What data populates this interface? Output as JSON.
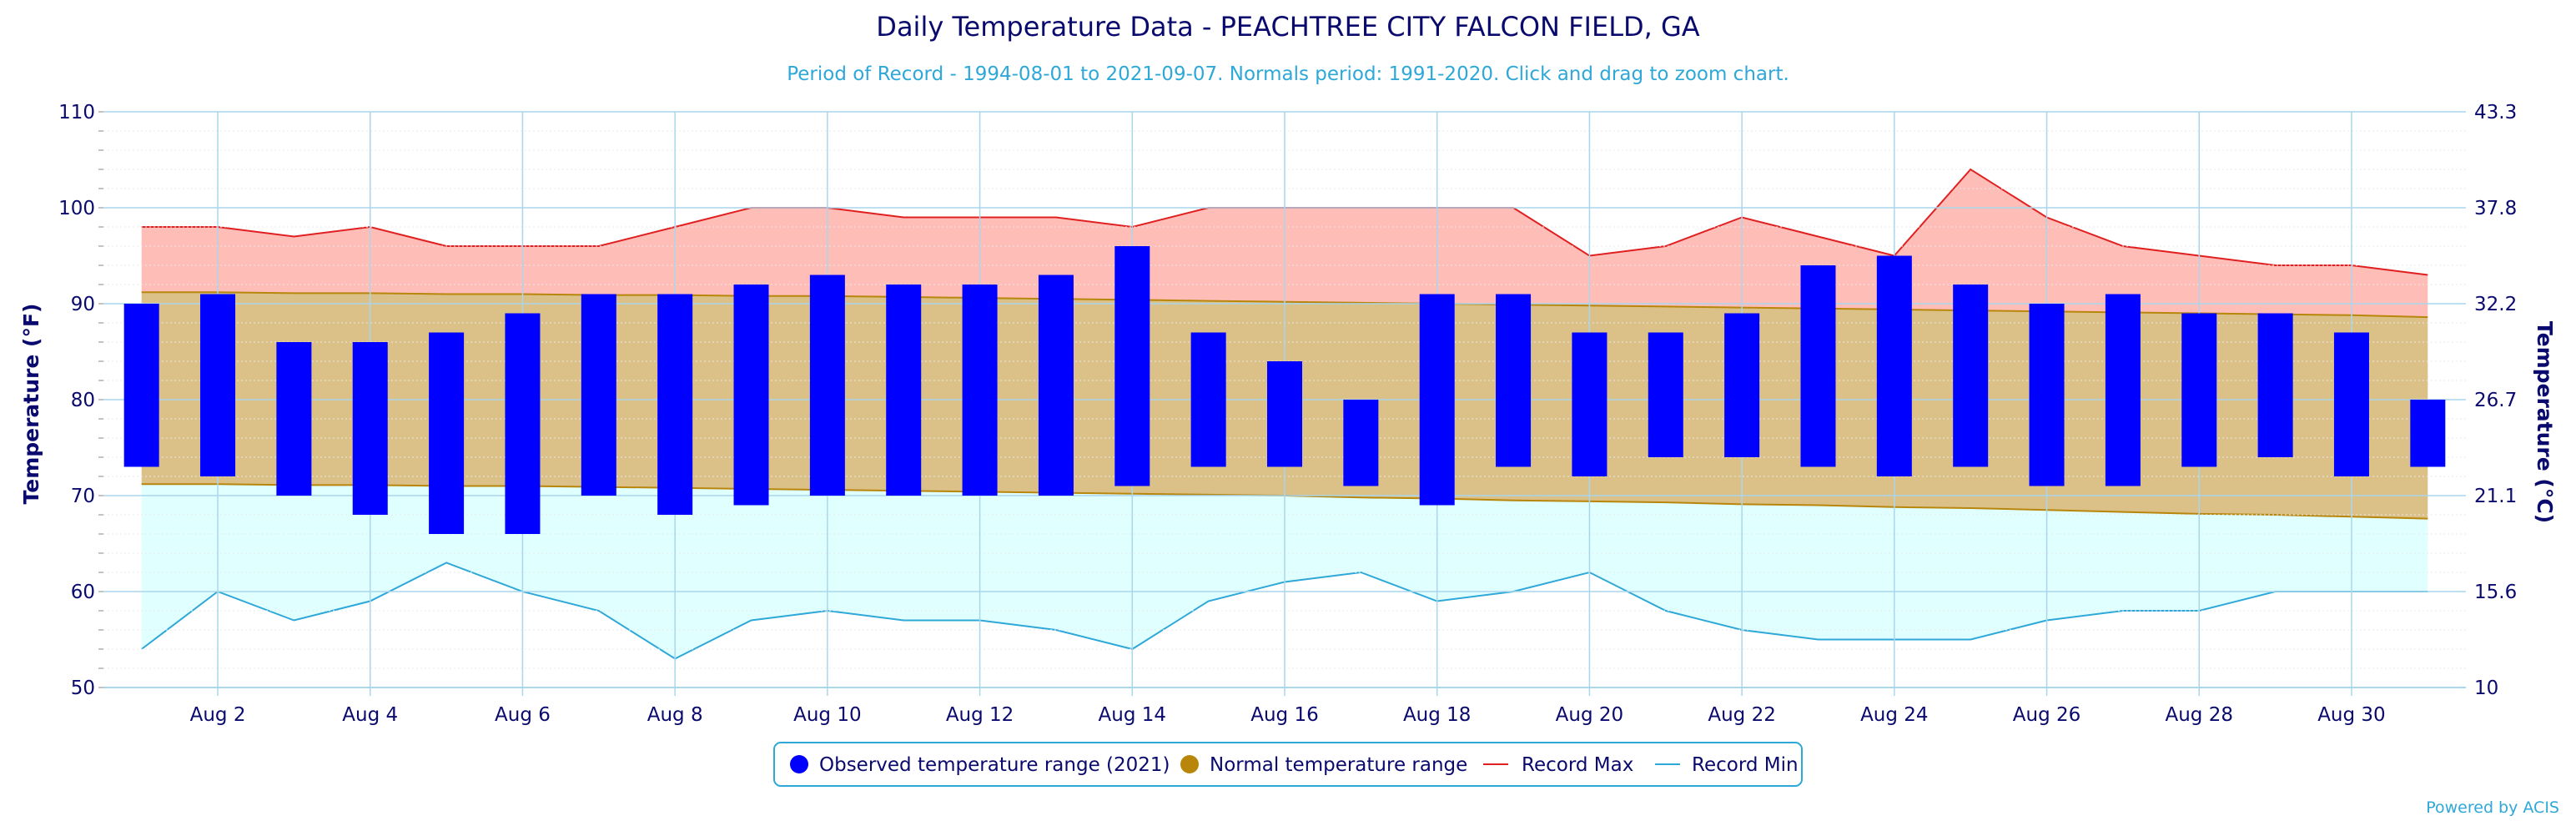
{
  "chart_data": {
    "type": "bar",
    "title": "Daily Temperature Data - PEACHTREE CITY FALCON FIELD, GA",
    "subtitle": "Period of Record - 1994-08-01 to 2021-09-07. Normals period: 1991-2020. Click and drag to zoom chart.",
    "ylabel": "Temperature (°F)",
    "ylabel_right": "Temperature (°C)",
    "ylim": [
      50,
      110
    ],
    "x": [
      1,
      2,
      3,
      4,
      5,
      6,
      7,
      8,
      9,
      10,
      11,
      12,
      13,
      14,
      15,
      16,
      17,
      18,
      19,
      20,
      21,
      22,
      23,
      24,
      25,
      26,
      27,
      28,
      29,
      30,
      31
    ],
    "x_tick_labels": [
      "Aug 2",
      "Aug 4",
      "Aug 6",
      "Aug 8",
      "Aug 10",
      "Aug 12",
      "Aug 14",
      "Aug 16",
      "Aug 18",
      "Aug 20",
      "Aug 22",
      "Aug 24",
      "Aug 26",
      "Aug 28",
      "Aug 30"
    ],
    "x_tick_values": [
      2,
      4,
      6,
      8,
      10,
      12,
      14,
      16,
      18,
      20,
      22,
      24,
      26,
      28,
      30
    ],
    "y_tick_labels": [
      "50",
      "60",
      "70",
      "80",
      "90",
      "100",
      "110"
    ],
    "y_right_tick_labels": [
      "10",
      "15.6",
      "21.1",
      "26.7",
      "32.2",
      "37.8",
      "43.3"
    ],
    "series": [
      {
        "name": "Observed temperature range (2021)",
        "color": "#0000ff",
        "low": [
          73,
          72,
          70,
          68,
          66,
          66,
          70,
          68,
          69,
          70,
          70,
          70,
          70,
          71,
          73,
          73,
          71,
          69,
          73,
          72,
          74,
          74,
          73,
          72,
          73,
          71,
          71,
          73,
          74,
          72,
          73
        ],
        "high": [
          90,
          91,
          86,
          86,
          87,
          89,
          91,
          91,
          92,
          93,
          92,
          92,
          93,
          96,
          87,
          84,
          80,
          91,
          91,
          87,
          87,
          89,
          94,
          95,
          92,
          90,
          91,
          89,
          89,
          87,
          80
        ]
      },
      {
        "name": "Normal temperature range",
        "color": "#b8860b",
        "low": [
          71.2,
          71.2,
          71.1,
          71.1,
          71.0,
          71.0,
          70.9,
          70.8,
          70.7,
          70.6,
          70.5,
          70.4,
          70.3,
          70.2,
          70.1,
          70.0,
          69.8,
          69.7,
          69.5,
          69.4,
          69.3,
          69.1,
          69.0,
          68.8,
          68.7,
          68.5,
          68.3,
          68.1,
          68.0,
          67.8,
          67.6
        ],
        "high": [
          91.2,
          91.2,
          91.1,
          91.1,
          91.0,
          91.0,
          90.9,
          90.9,
          90.8,
          90.8,
          90.7,
          90.6,
          90.5,
          90.4,
          90.3,
          90.2,
          90.1,
          90.0,
          89.9,
          89.8,
          89.7,
          89.6,
          89.5,
          89.4,
          89.3,
          89.2,
          89.1,
          89.0,
          88.9,
          88.8,
          88.6
        ]
      },
      {
        "name": "Record Max",
        "color": "#e02020",
        "values": [
          98,
          98,
          97,
          98,
          96,
          96,
          96,
          98,
          100,
          100,
          99,
          99,
          99,
          98,
          100,
          100,
          100,
          100,
          100,
          95,
          96,
          99,
          97,
          95,
          104,
          99,
          96,
          95,
          94,
          94,
          93
        ]
      },
      {
        "name": "Record Min",
        "color": "#2ea8d8",
        "values": [
          54,
          60,
          57,
          59,
          63,
          60,
          58,
          53,
          57,
          58,
          57,
          57,
          56,
          54,
          59,
          61,
          62,
          59,
          60,
          62,
          58,
          56,
          55,
          55,
          55,
          57,
          58,
          58,
          60,
          60,
          60
        ]
      }
    ],
    "legend_position": "bottom-center",
    "grid": true
  },
  "credit": "Powered by ACIS"
}
